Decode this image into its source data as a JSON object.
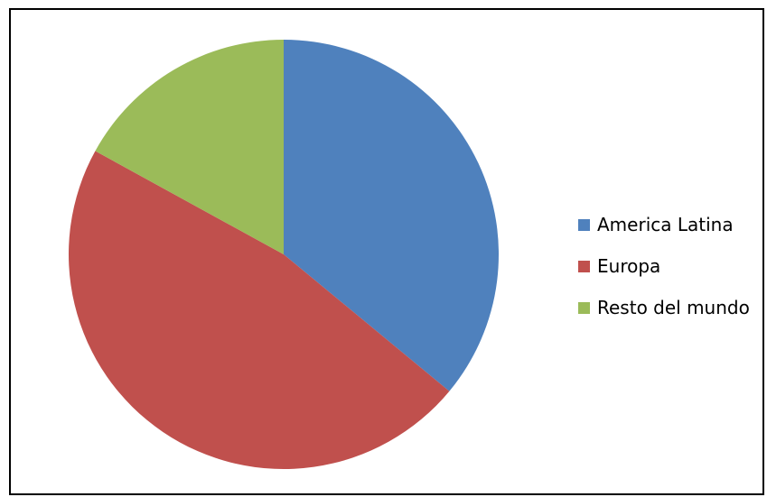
{
  "chart_data": {
    "type": "pie",
    "title": "",
    "start_angle_deg": 0,
    "direction": "clockwise",
    "legend_position": "right",
    "slices": [
      {
        "label": "America Latina",
        "value": 36,
        "color": "#4F81BD"
      },
      {
        "label": "Europa",
        "value": 47,
        "color": "#C0504D"
      },
      {
        "label": "Resto del mundo",
        "value": 17,
        "color": "#9BBB59"
      }
    ]
  }
}
